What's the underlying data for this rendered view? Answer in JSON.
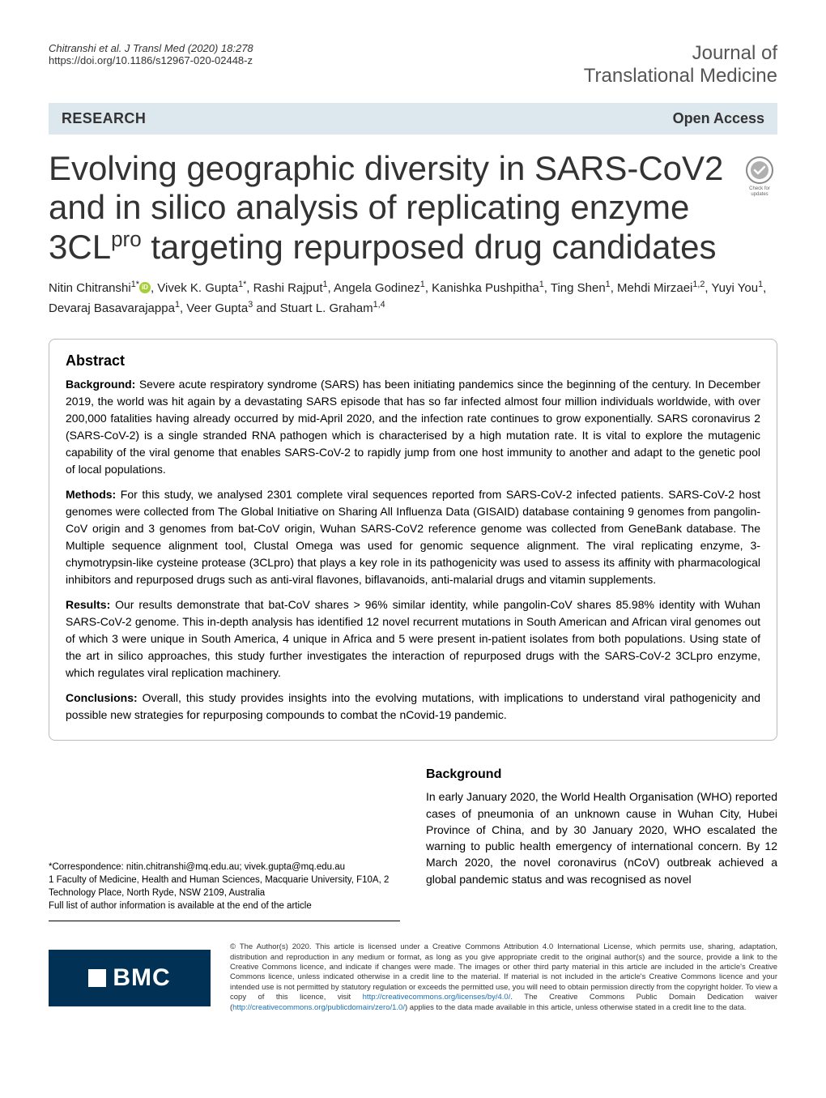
{
  "header": {
    "citation": "Chitranshi et al. J Transl Med     (2020) 18:278",
    "doi": "https://doi.org/10.1186/s12967-020-02448-z",
    "journal_line1": "Journal of",
    "journal_line2": "Translational Medicine"
  },
  "banner": {
    "research": "RESEARCH",
    "open_access": "Open Access"
  },
  "title": {
    "line1": "Evolving geographic diversity in SARS-CoV2",
    "line2": "and in silico analysis of replicating enzyme",
    "line3a": "3CL",
    "line3_sup": "pro",
    "line3b": " targeting repurposed drug candidates"
  },
  "badge": {
    "name": "check-for-updates-badge",
    "ring_color": "#888888",
    "tick_color": "#ffffff",
    "inner_color": "#b0b0b0",
    "caption_line1": "Check for",
    "caption_line2": "updates"
  },
  "authors": {
    "list": "Nitin Chitranshi1* , Vivek K. Gupta1*, Rashi Rajput1, Angela Godinez1, Kanishka Pushpitha1, Ting Shen1, Mehdi Mirzaei1,2, Yuyi You1, Devaraj Basavarajappa1, Veer Gupta3 and Stuart L. Graham1,4",
    "parts": [
      {
        "name": "Nitin Chitranshi",
        "aff": "1*",
        "orcid": true
      },
      {
        "text": ", "
      },
      {
        "name": "Vivek K. Gupta",
        "aff": "1*"
      },
      {
        "text": ", "
      },
      {
        "name": "Rashi Rajput",
        "aff": "1"
      },
      {
        "text": ", "
      },
      {
        "name": "Angela Godinez",
        "aff": "1"
      },
      {
        "text": ", "
      },
      {
        "name": "Kanishka Pushpitha",
        "aff": "1"
      },
      {
        "text": ", "
      },
      {
        "name": "Ting Shen",
        "aff": "1"
      },
      {
        "text": ", "
      },
      {
        "name": "Mehdi Mirzaei",
        "aff": "1,2"
      },
      {
        "text": ", "
      },
      {
        "name": "Yuyi You",
        "aff": "1"
      },
      {
        "text": ", "
      },
      {
        "name": "Devaraj Basavarajappa",
        "aff": "1"
      },
      {
        "text": ", "
      },
      {
        "name": "Veer Gupta",
        "aff": "3"
      },
      {
        "text": " and "
      },
      {
        "name": "Stuart L. Graham",
        "aff": "1,4"
      }
    ]
  },
  "abstract": {
    "heading": "Abstract",
    "background_label": "Background:",
    "background_text": " Severe acute respiratory syndrome (SARS) has been initiating pandemics since the beginning of the century. In December 2019, the world was hit again by a devastating SARS episode that has so far infected almost four million individuals worldwide, with over 200,000 fatalities having already occurred by mid-April 2020, and the infection rate continues to grow exponentially. SARS coronavirus 2 (SARS-CoV-2) is a single stranded RNA pathogen which is characterised by a high mutation rate. It is vital to explore the mutagenic capability of the viral genome that enables SARS-CoV-2 to rapidly jump from one host immunity to another and adapt to the genetic pool of local populations.",
    "methods_label": "Methods:",
    "methods_text": " For this study, we analysed 2301 complete viral sequences reported from SARS-CoV-2 infected patients. SARS-CoV-2 host genomes were collected from The Global Initiative on Sharing All Influenza Data (GISAID) database containing 9 genomes from pangolin-CoV origin and 3 genomes from bat-CoV origin, Wuhan SARS-CoV2 reference genome was collected from GeneBank database. The Multiple sequence alignment tool, Clustal Omega was used for genomic sequence alignment. The viral replicating enzyme, 3-chymotrypsin-like cysteine protease (3CLpro) that plays a key role in its pathogenicity was used to assess its affinity with pharmacological inhibitors and repurposed drugs such as anti-viral flavones, biflavanoids, anti-malarial drugs and vitamin supplements.",
    "results_label": "Results:",
    "results_text": " Our results demonstrate that bat-CoV shares > 96% similar identity, while pangolin-CoV shares 85.98% identity with Wuhan SARS-CoV-2 genome. This in-depth analysis has identified 12 novel recurrent mutations in South American and African viral genomes out of which 3 were unique in South America, 4 unique in Africa and 5 were present in-patient isolates from both populations. Using state of the art in silico approaches, this study further investigates the interaction of repurposed drugs with the SARS-CoV-2 3CLpro enzyme, which regulates viral replication machinery.",
    "conclusions_label": "Conclusions:",
    "conclusions_text": " Overall, this study provides insights into the evolving mutations, with implications to understand viral pathogenicity and possible new strategies for repurposing compounds to combat the nCovid-19 pandemic."
  },
  "background": {
    "heading": "Background",
    "text": "In early January 2020, the World Health Organisation (WHO) reported cases of pneumonia of an unknown cause in Wuhan City, Hubei Province of China, and by 30 January 2020, WHO escalated the warning to public health emergency of international concern. By 12 March 2020, the novel coronavirus (nCoV) outbreak achieved a global pandemic status and was recognised as novel"
  },
  "correspondence": {
    "line1": "*Correspondence:  nitin.chitranshi@mq.edu.au; vivek.gupta@mq.edu.au",
    "line2": "1 Faculty of Medicine, Health and Human Sciences, Macquarie University, F10A, 2 Technology Place, North Ryde, NSW 2109, Australia",
    "line3": "Full list of author information is available at the end of the article"
  },
  "footer": {
    "bmc": "BMC",
    "license_prefix": "© The Author(s) 2020. This article is licensed under a Creative Commons Attribution 4.0 International License, which permits use, sharing, adaptation, distribution and reproduction in any medium or format, as long as you give appropriate credit to the original author(s) and the source, provide a link to the Creative Commons licence, and indicate if changes were made. The images or other third party material in this article are included in the article's Creative Commons licence, unless indicated otherwise in a credit line to the material. If material is not included in the article's Creative Commons licence and your intended use is not permitted by statutory regulation or exceeds the permitted use, you will need to obtain permission directly from the copyright holder. To view a copy of this licence, visit ",
    "license_link1": "http://creativecommons.org/licenses/by/4.0/",
    "license_mid": ". The Creative Commons Public Domain Dedication waiver (",
    "license_link2": "http://creativecommons.org/publicdomain/zero/1.0/",
    "license_suffix": ") applies to the data made available in this article, unless otherwise stated in a credit line to the data."
  },
  "colors": {
    "banner_bg": "#dce8ee",
    "bmc_bg": "#023156",
    "link": "#1a6fb5",
    "orcid": "#a6ce39"
  }
}
